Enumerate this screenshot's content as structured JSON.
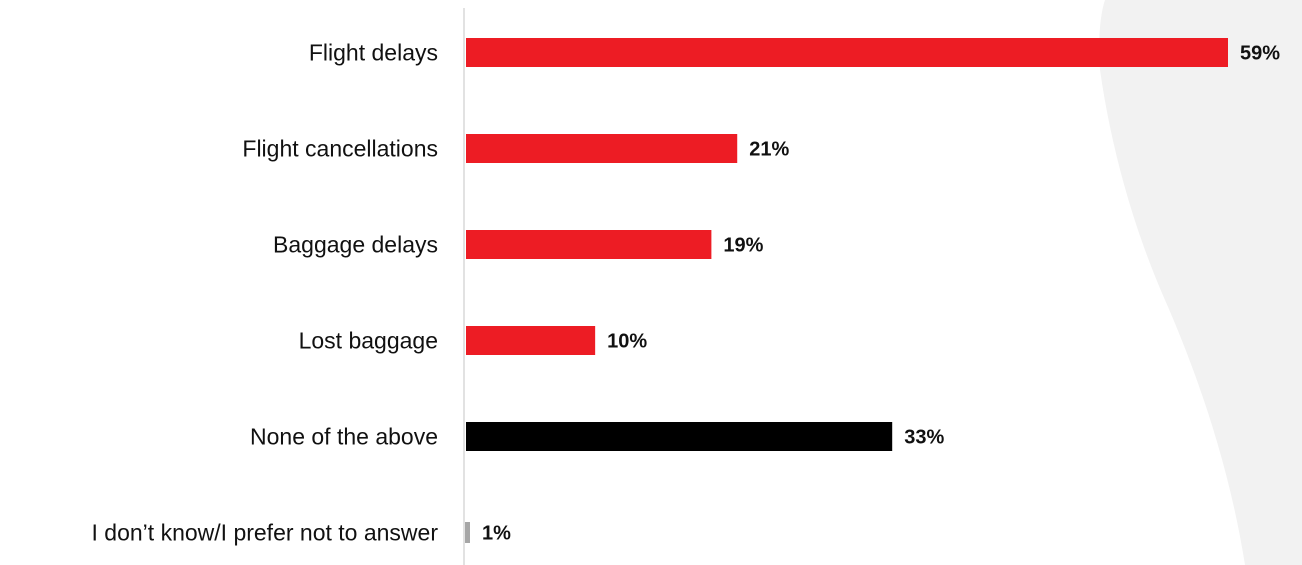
{
  "chart_data": {
    "type": "bar",
    "orientation": "horizontal",
    "categories": [
      "Flight delays",
      "Flight cancellations",
      "Baggage delays",
      "Lost baggage",
      "None of the above",
      "I don’t know/I prefer not to answer"
    ],
    "values": [
      59,
      21,
      19,
      10,
      33,
      1
    ],
    "value_labels": [
      "59%",
      "21%",
      "19%",
      "10%",
      "33%",
      "1%"
    ],
    "bar_colors": [
      "#ed1c24",
      "#ed1c24",
      "#ed1c24",
      "#ed1c24",
      "#000000",
      "#a6a6a6"
    ],
    "title": "",
    "xlabel": "",
    "ylabel": "",
    "xlim": [
      0,
      59
    ],
    "grid": false,
    "legend": "none"
  },
  "colors": {
    "accent": "#ed1c24",
    "none_bar": "#000000",
    "dont_know_bar": "#a6a6a6",
    "axis": "#d9d9d9",
    "background_shape": "#f2f2f2"
  }
}
